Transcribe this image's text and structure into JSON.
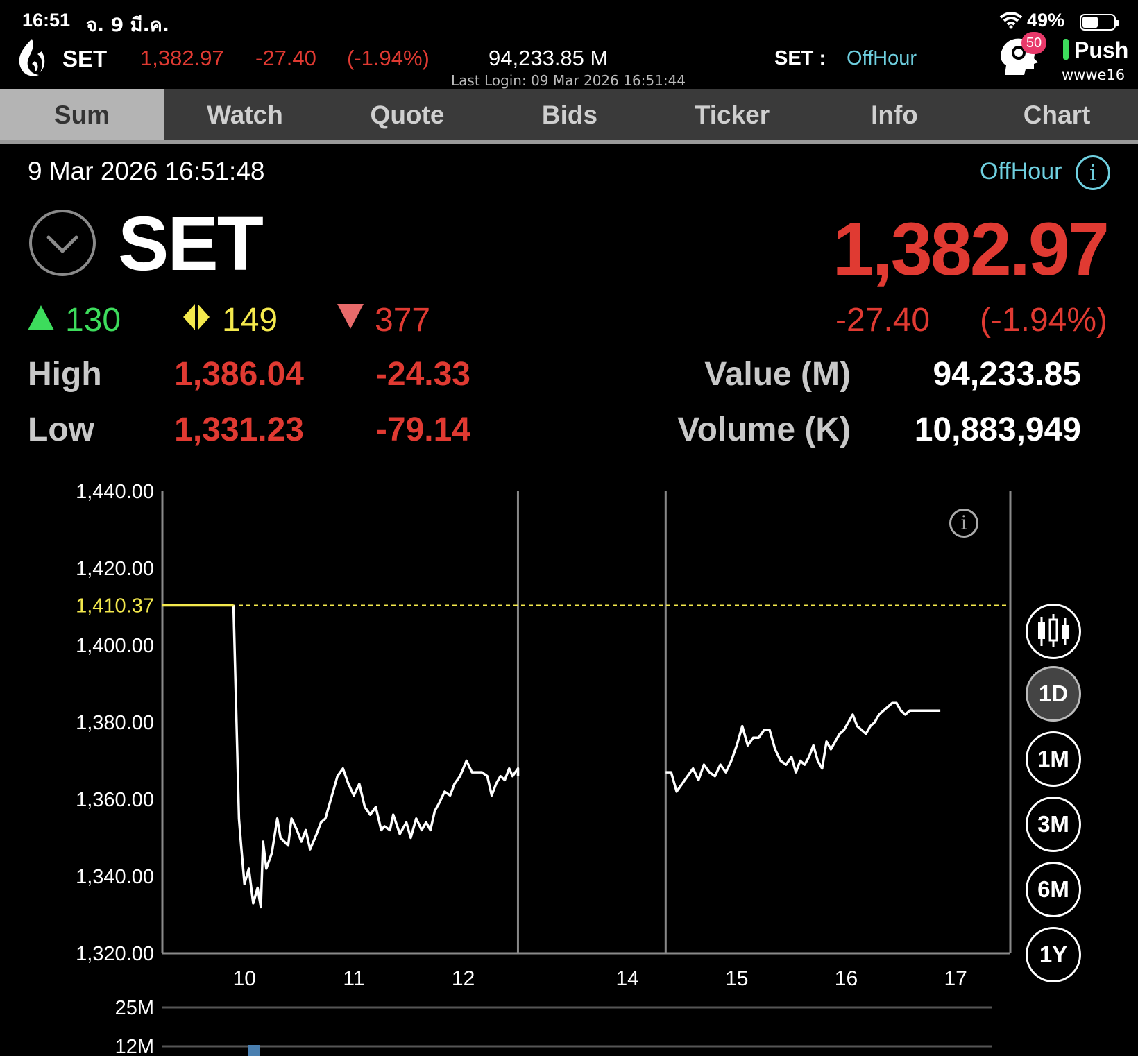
{
  "status_bar": {
    "time": "16:51",
    "date": "จ. 9 มี.ค.",
    "battery": "49%",
    "wifi_icon": "wifi-icon",
    "battery_icon": "battery-icon"
  },
  "header": {
    "name": "SET",
    "price": "1,382.97",
    "change": "-27.40",
    "percent": "(-1.94%)",
    "value": "94,233.85 M",
    "last_login": "Last Login: 09 Mar 2026 16:51:44",
    "market_label": "SET :",
    "market_status": "OffHour",
    "notification_count": "50",
    "push_label": "Push",
    "user": "wwwe16"
  },
  "tabs": [
    {
      "label": "Sum",
      "active": true
    },
    {
      "label": "Watch",
      "active": false
    },
    {
      "label": "Quote",
      "active": false
    },
    {
      "label": "Bids",
      "active": false
    },
    {
      "label": "Ticker",
      "active": false
    },
    {
      "label": "Info",
      "active": false
    },
    {
      "label": "Chart",
      "active": false
    }
  ],
  "summary": {
    "datetime": "9 Mar 2026 16:51:48",
    "market_status": "OffHour",
    "symbol": "SET",
    "last": "1,382.97",
    "advances": "130",
    "unchanged": "149",
    "declines": "377",
    "change": "-27.40",
    "percent": "(-1.94%)",
    "high_label": "High",
    "high": "1,386.04",
    "high_change": "-24.33",
    "low_label": "Low",
    "low": "1,331.23",
    "low_change": "-79.14",
    "value_label": "Value (M)",
    "value": "94,233.85",
    "volume_label": "Volume (K)",
    "volume": "10,883,949"
  },
  "timeframes": [
    "1D",
    "1M",
    "3M",
    "6M",
    "1Y"
  ],
  "active_timeframe": "1D",
  "colors": {
    "up": "#3ddc5c",
    "unchanged": "#f4e94d",
    "down": "#e03a32",
    "offhour": "#6fd0e0"
  },
  "chart_data": {
    "type": "line",
    "ylim": [
      1320,
      1440
    ],
    "y_ticks": [
      "1,440.00",
      "1,420.00",
      "1,400.00",
      "1,380.00",
      "1,360.00",
      "1,340.00",
      "1,320.00"
    ],
    "y_tick_values": [
      1440,
      1420,
      1400,
      1380,
      1360,
      1340,
      1320
    ],
    "xlim": [
      9.25,
      17
    ],
    "x_ticks": [
      "10",
      "11",
      "12",
      "14",
      "15",
      "16",
      "17"
    ],
    "x_tick_values": [
      10,
      11,
      12,
      13.5,
      14.5,
      15.5,
      16.5
    ],
    "reference_label": "1,410.37",
    "reference_value": 1410.37,
    "session_breaks": [
      12.5,
      13.85
    ],
    "volume_ticks": [
      "25M",
      "12M"
    ],
    "series": [
      {
        "x": [
          9.25,
          9.9,
          9.95,
          9.97,
          10.0,
          10.04,
          10.08,
          10.12,
          10.15,
          10.17,
          10.2,
          10.25,
          10.3,
          10.33,
          10.4,
          10.43,
          10.48,
          10.52,
          10.56,
          10.6,
          10.66,
          10.7,
          10.74,
          10.8,
          10.85,
          10.9,
          10.95,
          11.0,
          11.05,
          11.1,
          11.15,
          11.2,
          11.25,
          11.28,
          11.33,
          11.36,
          11.42,
          11.48,
          11.52,
          11.57,
          11.62,
          11.66,
          11.7,
          11.74,
          11.78,
          11.83,
          11.88,
          11.92,
          11.97,
          12.03,
          12.08,
          12.12,
          12.17,
          12.22,
          12.26,
          12.3,
          12.34,
          12.38,
          12.42,
          12.45,
          12.5,
          12.5,
          13.85,
          13.9,
          13.95,
          14.0,
          14.05,
          14.1,
          14.15,
          14.2,
          14.25,
          14.3,
          14.35,
          14.4,
          14.45,
          14.5,
          14.55,
          14.6,
          14.65,
          14.7,
          14.75,
          14.8,
          14.85,
          14.9,
          14.95,
          15.0,
          15.04,
          15.08,
          15.12,
          15.16,
          15.2,
          15.24,
          15.28,
          15.32,
          15.36,
          15.4,
          15.44,
          15.48,
          15.52,
          15.56,
          15.6,
          15.64,
          15.68,
          15.72,
          15.76,
          15.8,
          15.84,
          15.88,
          15.92,
          15.96,
          16.0,
          16.04,
          16.08,
          16.12,
          16.16,
          16.22,
          16.3,
          16.36
        ],
        "y": [
          1410.37,
          1410.37,
          1355,
          1348,
          1338,
          1342,
          1333,
          1337,
          1332,
          1349,
          1342,
          1346,
          1355,
          1350,
          1348,
          1355,
          1352,
          1349,
          1352,
          1347,
          1351,
          1354,
          1355,
          1361,
          1366,
          1368,
          1364,
          1361,
          1364,
          1358,
          1356,
          1358,
          1352,
          1353,
          1352,
          1356,
          1351,
          1354,
          1350,
          1355,
          1352,
          1354,
          1352,
          1357,
          1359,
          1362,
          1361,
          1364,
          1366,
          1370,
          1367,
          1367,
          1367,
          1366,
          1361,
          1364,
          1366,
          1365,
          1368,
          1366,
          1368,
          1366,
          1367,
          1367,
          1362,
          1364,
          1366,
          1368,
          1365,
          1369,
          1367,
          1366,
          1369,
          1367,
          1370,
          1374,
          1379,
          1374,
          1376,
          1376,
          1378,
          1378,
          1373,
          1370,
          1369,
          1371,
          1367,
          1370,
          1369,
          1371,
          1374,
          1370,
          1368,
          1375,
          1373,
          1375,
          1377,
          1378,
          1380,
          1382,
          1379,
          1378,
          1377,
          1379,
          1380,
          1382,
          1383,
          1384,
          1385,
          1385,
          1383,
          1382,
          1383,
          1383,
          1383,
          1383,
          1383,
          1383
        ],
        "name": "",
        "color": "#ffffff"
      }
    ]
  }
}
